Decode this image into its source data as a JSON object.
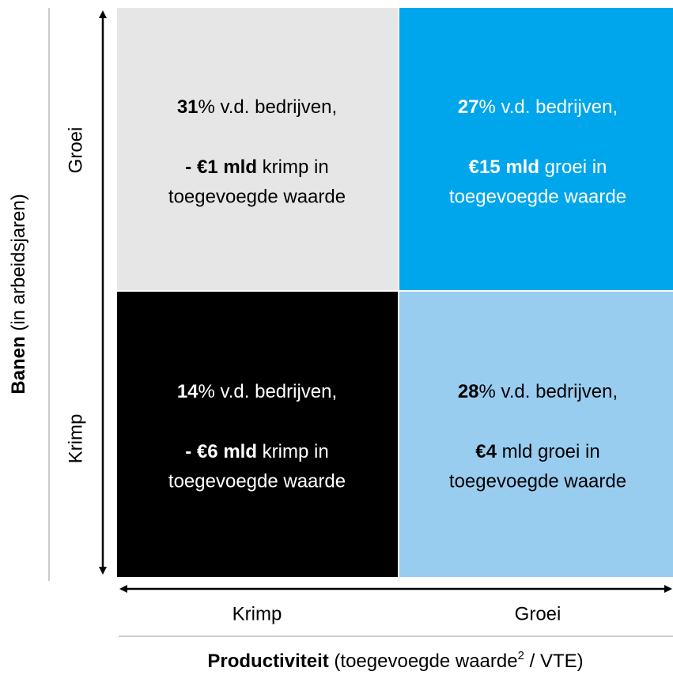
{
  "y_axis": {
    "label_bold": "Banen",
    "label": " (in arbeidsjaren)",
    "top": "Groei",
    "bottom": "Krimp"
  },
  "x_axis": {
    "left": "Krimp",
    "right": "Groei",
    "label_bold": "Productiviteit",
    "label": " (toegevoegde waarde",
    "superscript": "2",
    "label_end": " / VTE)"
  },
  "quadrants": [
    {
      "share": "31",
      "share_text": "% v.d. bedrijven,",
      "amount": "- €1 mld",
      "amount_text": " krimp in",
      "line3": "toegevoegde waarde"
    },
    {
      "share": "27",
      "share_text": "% v.d. bedrijven,",
      "amount": "€15 mld",
      "amount_text": " groei in",
      "line3": "toegevoegde waarde"
    },
    {
      "share": "14",
      "share_text": "% v.d. bedrijven,",
      "amount": "- €6 mld",
      "amount_text": " krimp in",
      "line3": "toegevoegde waarde"
    },
    {
      "share": "28",
      "share_text": "% v.d. bedrijven,",
      "amount": "€4",
      "amount_text": " mld groei in",
      "line3": "toegevoegde waarde"
    }
  ]
}
